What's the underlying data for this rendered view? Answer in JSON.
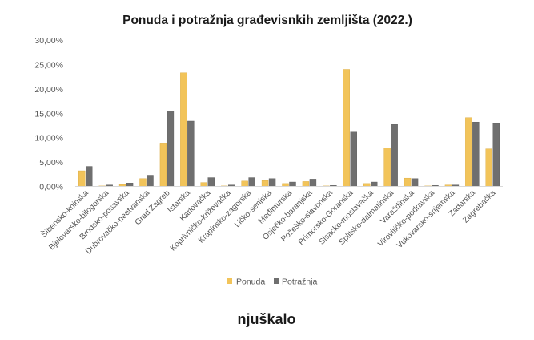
{
  "chart_data": {
    "type": "bar",
    "title": "Ponuda i potražnja građevisnkih zemljišta (2022.)",
    "xlabel": "",
    "ylabel": "",
    "ylim": [
      0,
      30
    ],
    "y_ticks": [
      "0,00%",
      "5,00%",
      "10,00%",
      "15,00%",
      "20,00%",
      "25,00%",
      "30,00%"
    ],
    "grid": false,
    "legend_position": "bottom",
    "categories": [
      "Šibensko-kninska",
      "Bjelovarsko-bilogorska",
      "Brodsko-posavska",
      "Dubrovačko-neetvanska",
      "Grad Zagreb",
      "Istarska",
      "Karlovačka",
      "Koprivničko-križevačka",
      "Krapinsko-zagorska",
      "Ličko-senjska",
      "Međimurska",
      "Osječko-baranjska",
      "Požeško-slavonska",
      "Primorsko-Goranska",
      "Sisačko-moslavačka",
      "Splitsko-dalmatinska",
      "Varaždinska",
      "Virovitičko-podravska",
      "Vukovarsko-srijemska",
      "Zadarska",
      "Zagrebačka"
    ],
    "series": [
      {
        "name": "Ponuda",
        "color": "#f2c45a",
        "values": [
          3.2,
          0.1,
          0.4,
          1.6,
          8.9,
          23.3,
          0.8,
          0.1,
          1.1,
          1.2,
          0.6,
          1.0,
          0.1,
          24.0,
          0.6,
          7.9,
          1.7,
          0.1,
          0.3,
          14.1,
          7.7
        ]
      },
      {
        "name": "Potražnja",
        "color": "#6f6f6f",
        "values": [
          4.1,
          0.3,
          0.7,
          2.3,
          15.5,
          13.4,
          1.8,
          0.3,
          1.8,
          1.6,
          0.9,
          1.5,
          0.2,
          11.3,
          0.9,
          12.7,
          1.6,
          0.2,
          0.3,
          13.2,
          12.9
        ]
      }
    ]
  },
  "brand": {
    "logo_text": "njuškalo"
  }
}
